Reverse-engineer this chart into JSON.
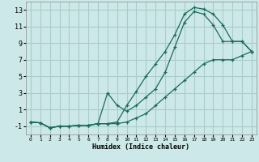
{
  "xlabel": "Humidex (Indice chaleur)",
  "bg_color": "#cce8e8",
  "grid_color": "#aacccc",
  "line_color": "#1a6b5a",
  "xlim": [
    -0.5,
    23.5
  ],
  "ylim": [
    -2,
    14
  ],
  "xticks": [
    0,
    1,
    2,
    3,
    4,
    5,
    6,
    7,
    8,
    9,
    10,
    11,
    12,
    13,
    14,
    15,
    16,
    17,
    18,
    19,
    20,
    21,
    22,
    23
  ],
  "yticks": [
    -1,
    1,
    3,
    5,
    7,
    9,
    11,
    13
  ],
  "line1_x": [
    0,
    1,
    2,
    3,
    4,
    5,
    6,
    7,
    8,
    9,
    10,
    11,
    12,
    13,
    14,
    15,
    16,
    17,
    18,
    19,
    20,
    21,
    22,
    23
  ],
  "line1_y": [
    -0.5,
    -0.6,
    -1.2,
    -1.0,
    -1.0,
    -0.9,
    -0.9,
    -0.7,
    -0.7,
    -0.5,
    1.5,
    3.2,
    5.0,
    6.5,
    8.0,
    10.0,
    12.5,
    13.3,
    13.1,
    12.5,
    11.2,
    9.2,
    9.2,
    8.0
  ],
  "line2_x": [
    0,
    1,
    2,
    3,
    4,
    5,
    6,
    7,
    8,
    9,
    10,
    11,
    12,
    13,
    14,
    15,
    16,
    17,
    18,
    19,
    20,
    21,
    22,
    23
  ],
  "line2_y": [
    -0.5,
    -0.6,
    -1.2,
    -1.0,
    -1.0,
    -0.9,
    -0.9,
    -0.7,
    3.0,
    1.5,
    0.8,
    1.5,
    2.5,
    3.5,
    5.5,
    8.5,
    11.5,
    12.8,
    12.5,
    11.2,
    9.2,
    9.2,
    9.2,
    8.0
  ],
  "line3_x": [
    0,
    1,
    2,
    3,
    4,
    5,
    6,
    7,
    8,
    9,
    10,
    11,
    12,
    13,
    14,
    15,
    16,
    17,
    18,
    19,
    20,
    21,
    22,
    23
  ],
  "line3_y": [
    -0.5,
    -0.6,
    -1.2,
    -1.0,
    -1.0,
    -0.9,
    -0.9,
    -0.7,
    -0.7,
    -0.7,
    -0.5,
    0.0,
    0.5,
    1.5,
    2.5,
    3.5,
    4.5,
    5.5,
    6.5,
    7.0,
    7.0,
    7.0,
    7.5,
    8.0
  ]
}
